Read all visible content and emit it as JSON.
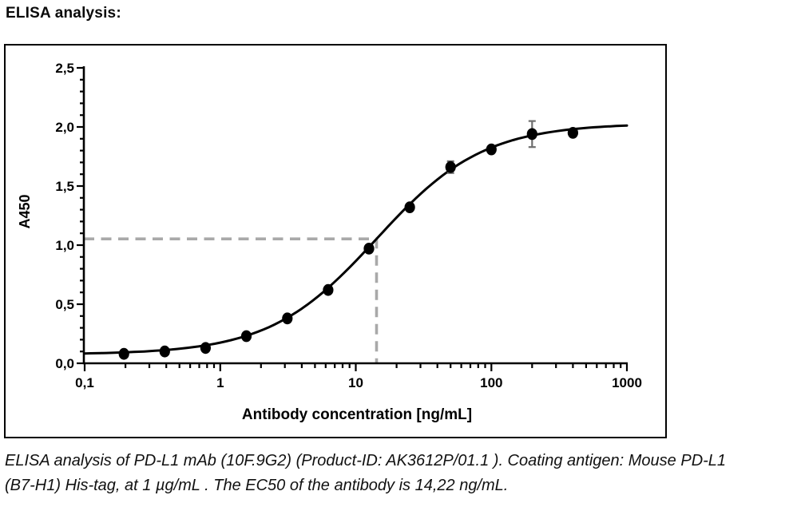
{
  "page": {
    "heading": "ELISA analysis:",
    "caption_lines": [
      "ELISA analysis of PD-L1 mAb (10F.9G2) (Product-ID: AK3612P/01.1 ). Coating antigen: Mouse PD-L1",
      "(B7-H1) His-tag, at 1 µg/mL . The EC50 of the antibody is 14,22 ng/mL."
    ]
  },
  "chart_data": {
    "type": "scatter",
    "title": "",
    "xlabel": "Antibody concentration [ng/mL]",
    "ylabel": "A450",
    "x_scale": "log",
    "xlim": [
      0.1,
      1000
    ],
    "ylim": [
      0.0,
      2.5
    ],
    "grid": false,
    "legend": false,
    "x_ticks": [
      {
        "value": 0.1,
        "label": "0,1"
      },
      {
        "value": 1,
        "label": "1"
      },
      {
        "value": 10,
        "label": "10"
      },
      {
        "value": 100,
        "label": "100"
      },
      {
        "value": 1000,
        "label": "1000"
      }
    ],
    "y_ticks": [
      {
        "value": 0.0,
        "label": "0,0"
      },
      {
        "value": 0.5,
        "label": "0,5"
      },
      {
        "value": 1.0,
        "label": "1,0"
      },
      {
        "value": 1.5,
        "label": "1,5"
      },
      {
        "value": 2.0,
        "label": "2,0"
      },
      {
        "value": 2.5,
        "label": "2,5"
      }
    ],
    "minor_ticks": {
      "x_multiples_per_decade": [
        2,
        3,
        4,
        5,
        6,
        7,
        8,
        9
      ],
      "y_step": 0.1
    },
    "series": [
      {
        "name": "PD-L1 mAb (10F.9G2)",
        "x": [
          0.195,
          0.39,
          0.78,
          1.56,
          3.125,
          6.25,
          12.5,
          25,
          50,
          100,
          200,
          400
        ],
        "y": [
          0.08,
          0.1,
          0.13,
          0.23,
          0.38,
          0.62,
          0.97,
          1.32,
          1.66,
          1.81,
          1.94,
          1.95
        ]
      }
    ],
    "error_bars": [
      {
        "x": 50,
        "y": 1.66,
        "err": 0.05
      },
      {
        "x": 200,
        "y": 1.94,
        "err": 0.11
      }
    ],
    "ec50_crosshair": {
      "x": 14.22,
      "y": 1.05
    },
    "fit_curve": {
      "model": "4PL",
      "bottom": 0.075,
      "top": 2.03,
      "ec50": 14.22,
      "hill": 1.1
    },
    "colors": {
      "curve": "#000000",
      "marker": "#000000",
      "crosshair": "#a9a9a9",
      "error_bar": "#6e6e6e",
      "frame": "#000000",
      "text": "#000000"
    }
  }
}
